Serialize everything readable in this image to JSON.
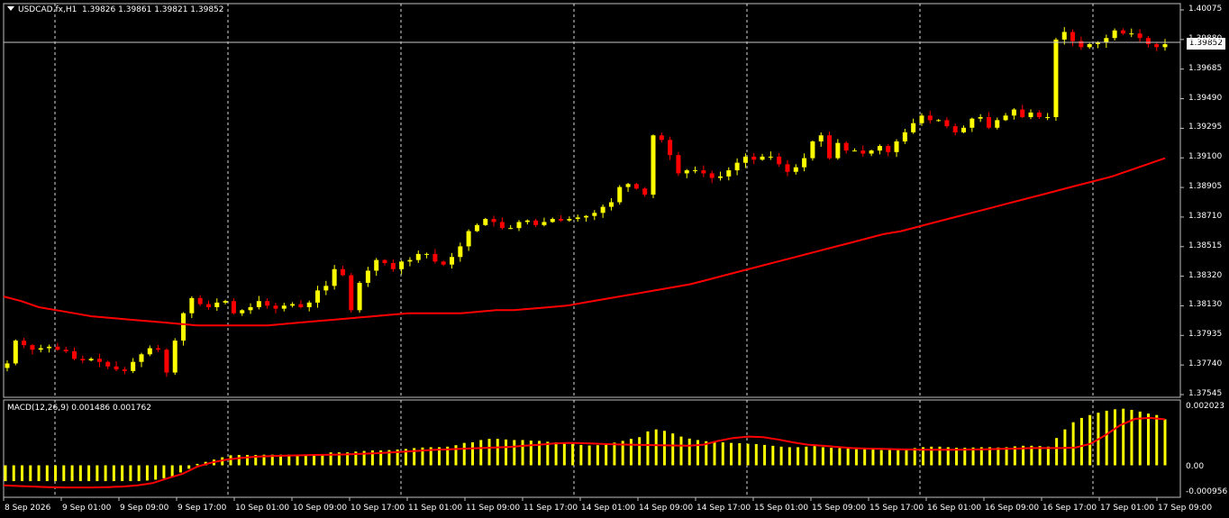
{
  "main": {
    "symbol_label": "USDCAD.fx,H1",
    "ohlc_label": "1.39826 1.39861 1.39821 1.39852",
    "last_price": "1.39852",
    "y_ticks": [
      "1.40075",
      "1.39880",
      "1.39685",
      "1.39490",
      "1.39295",
      "1.39100",
      "1.38905",
      "1.38710",
      "1.38515",
      "1.38320",
      "1.38130",
      "1.37935",
      "1.37740",
      "1.37545"
    ]
  },
  "macd": {
    "label": "MACD(12,26,9) 0.001486 0.001762",
    "y_ticks": [
      "0.002023",
      "0.00",
      "-0.000956"
    ]
  },
  "x_ticks": [
    "8 Sep 2026",
    "9 Sep 01:00",
    "9 Sep 09:00",
    "9 Sep 17:00",
    "10 Sep 01:00",
    "10 Sep 09:00",
    "10 Sep 17:00",
    "11 Sep 01:00",
    "11 Sep 09:00",
    "11 Sep 17:00",
    "14 Sep 01:00",
    "14 Sep 09:00",
    "14 Sep 17:00",
    "15 Sep 01:00",
    "15 Sep 09:00",
    "15 Sep 17:00",
    "16 Sep 01:00",
    "16 Sep 09:00",
    "16 Sep 17:00",
    "17 Sep 01:00",
    "17 Sep 09:00"
  ],
  "colors": {
    "bull": "#ffff00",
    "bear": "#ff0000",
    "ma": "#ff0000",
    "macd_signal": "#ff0000",
    "macd_hist": "#ffff00",
    "grid": "#ffffff"
  },
  "chart_data": {
    "type": "candlestick",
    "ylim": [
      1.37545,
      1.40075
    ],
    "close": [
      1.3775,
      1.379,
      1.3787,
      1.3784,
      1.3785,
      1.3786,
      1.3784,
      1.3783,
      1.3778,
      1.3777,
      1.3778,
      1.3776,
      1.3773,
      1.3771,
      1.377,
      1.3776,
      1.3781,
      1.3785,
      1.3784,
      1.3769,
      1.379,
      1.3808,
      1.3818,
      1.3814,
      1.3812,
      1.3815,
      1.3816,
      1.3808,
      1.381,
      1.3812,
      1.3816,
      1.3813,
      1.3811,
      1.3813,
      1.3814,
      1.3812,
      1.3815,
      1.3823,
      1.3826,
      1.3837,
      1.3833,
      1.381,
      1.3828,
      1.3836,
      1.3843,
      1.3841,
      1.3837,
      1.3842,
      1.3843,
      1.3847,
      1.3847,
      1.3842,
      1.384,
      1.3845,
      1.3852,
      1.3862,
      1.3866,
      1.387,
      1.3868,
      1.3864,
      1.3864,
      1.3868,
      1.3869,
      1.3866,
      1.3868,
      1.387,
      1.3869,
      1.387,
      1.3871,
      1.3872,
      1.3874,
      1.3878,
      1.3881,
      1.3891,
      1.3893,
      1.389,
      1.3886,
      1.3925,
      1.3922,
      1.3912,
      1.39,
      1.3902,
      1.3902,
      1.39,
      1.3897,
      1.3898,
      1.3902,
      1.3907,
      1.3911,
      1.3909,
      1.3911,
      1.3911,
      1.3906,
      1.3901,
      1.3904,
      1.391,
      1.3921,
      1.3925,
      1.391,
      1.392,
      1.3915,
      1.3915,
      1.3913,
      1.3915,
      1.3918,
      1.3914,
      1.3921,
      1.3927,
      1.3933,
      1.3938,
      1.3935,
      1.3935,
      1.3931,
      1.3927,
      1.393,
      1.3936,
      1.3937,
      1.393,
      1.3935,
      1.3938,
      1.3942,
      1.3937,
      1.394,
      1.3937,
      1.3937,
      1.3988,
      1.3993,
      1.3987,
      1.3983,
      1.3985,
      1.3986,
      1.3989,
      1.3994,
      1.3992,
      1.3992,
      1.3989,
      1.3985,
      1.3983,
      1.3985
    ],
    "ma": [
      1.3819,
      1.3816,
      1.3812,
      1.381,
      1.3808,
      1.3806,
      1.3805,
      1.3804,
      1.3803,
      1.3802,
      1.3801,
      1.38,
      1.38,
      1.38,
      1.38,
      1.38,
      1.3801,
      1.3802,
      1.3803,
      1.3804,
      1.3805,
      1.3806,
      1.3807,
      1.3808,
      1.3808,
      1.3808,
      1.3808,
      1.3809,
      1.381,
      1.381,
      1.3811,
      1.3812,
      1.3813,
      1.3815,
      1.3817,
      1.3819,
      1.3821,
      1.3823,
      1.3825,
      1.3827,
      1.383,
      1.3833,
      1.3836,
      1.3839,
      1.3842,
      1.3845,
      1.3848,
      1.3851,
      1.3854,
      1.3857,
      1.386,
      1.3862,
      1.3865,
      1.3868,
      1.3871,
      1.3874,
      1.3877,
      1.388,
      1.3883,
      1.3886,
      1.3889,
      1.3892,
      1.3895,
      1.3898,
      1.3902,
      1.3906,
      1.391
    ],
    "macd_hist": [
      -0.00055,
      -0.00055,
      -0.00055,
      -0.00055,
      -0.00055,
      -0.00055,
      -0.00055,
      -0.00055,
      -0.00055,
      -0.00055,
      -0.00055,
      -0.00055,
      -0.00055,
      -0.00055,
      -0.00055,
      -0.00055,
      -0.00055,
      -0.00053,
      -0.0005,
      -0.00045,
      -0.0004,
      -0.00025,
      -0.00012,
      5e-05,
      0.00012,
      0.0002,
      0.00028,
      0.00035,
      0.00036,
      0.00036,
      0.00036,
      0.00037,
      0.00037,
      0.00037,
      0.00037,
      0.00036,
      0.00036,
      0.00037,
      0.00038,
      0.00045,
      0.00045,
      0.00045,
      0.00048,
      0.0005,
      0.00052,
      0.00052,
      0.00053,
      0.00055,
      0.00057,
      0.0006,
      0.00062,
      0.00063,
      0.00063,
      0.00065,
      0.0007,
      0.00078,
      0.0008,
      0.00088,
      0.00092,
      0.00092,
      0.0009,
      0.00088,
      0.00088,
      0.00086,
      0.00085,
      0.00082,
      0.0008,
      0.00077,
      0.00074,
      0.00071,
      0.00069,
      0.0007,
      0.00074,
      0.00079,
      0.00085,
      0.00092,
      0.00098,
      0.00118,
      0.00125,
      0.0012,
      0.00111,
      0.001,
      0.00093,
      0.00088,
      0.00084,
      0.00082,
      0.0008,
      0.00078,
      0.00077,
      0.00075,
      0.00074,
      0.00071,
      0.00068,
      0.00065,
      0.00063,
      0.00063,
      0.00065,
      0.00067,
      0.00063,
      0.00061,
      0.0006,
      0.00058,
      0.00056,
      0.00056,
      0.00055,
      0.00053,
      0.00053,
      0.00053,
      0.00056,
      0.0006,
      0.00063,
      0.00065,
      0.00065,
      0.00063,
      0.00061,
      0.00061,
      0.00062,
      0.00063,
      0.00063,
      0.00062,
      0.00063,
      0.00066,
      0.00068,
      0.00068,
      0.00067,
      0.00065,
      0.00095,
      0.00125,
      0.0015,
      0.00165,
      0.00175,
      0.00183,
      0.0019,
      0.00195,
      0.00197,
      0.00193,
      0.00187,
      0.0018,
      0.00175,
      0.0016
    ],
    "macd_signal": [
      -0.0007,
      -0.00072,
      -0.00074,
      -0.00076,
      -0.00077,
      -0.00077,
      -0.00077,
      -0.00076,
      -0.00074,
      -0.0007,
      -0.00062,
      -0.00045,
      -0.0003,
      -5e-05,
      0.0001,
      0.0002,
      0.00026,
      0.0003,
      0.00032,
      0.00034,
      0.00035,
      0.00036,
      0.00037,
      0.00038,
      0.0004,
      0.00042,
      0.00045,
      0.00048,
      0.00051,
      0.00054,
      0.00056,
      0.00058,
      0.0006,
      0.00062,
      0.00064,
      0.00068,
      0.00072,
      0.00076,
      0.00078,
      0.00077,
      0.00075,
      0.00073,
      0.00072,
      0.00071,
      0.0007,
      0.00069,
      0.00068,
      0.00072,
      0.00085,
      0.00095,
      0.001,
      0.00098,
      0.0009,
      0.0008,
      0.00072,
      0.00068,
      0.00064,
      0.0006,
      0.00058,
      0.00057,
      0.00056,
      0.00055,
      0.00054,
      0.00054,
      0.00054,
      0.00055,
      0.00056,
      0.00057,
      0.00058,
      0.0006,
      0.0006,
      0.0006,
      0.00062,
      0.00075,
      0.00105,
      0.0014,
      0.00162,
      0.00165,
      0.0016
    ]
  }
}
